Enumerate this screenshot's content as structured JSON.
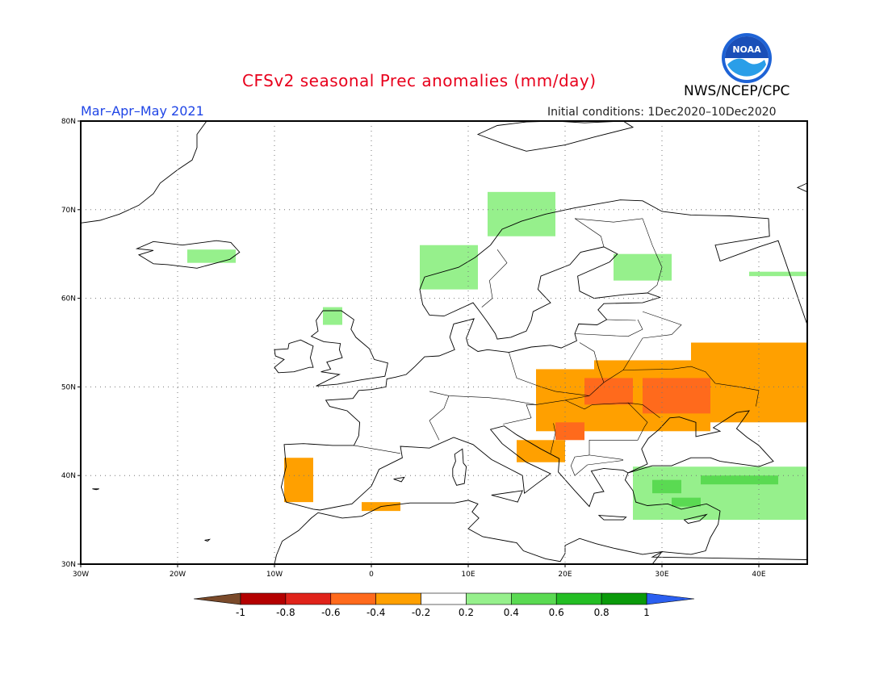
{
  "header": {
    "title": "CFSv2 seasonal Prec anomalies (mm/day)",
    "season": "Mar–Apr–May 2021",
    "initial_conditions": "Initial conditions: 1Dec2020–10Dec2020",
    "organization": "NWS/NCEP/CPC",
    "logo_text": "NOAA"
  },
  "map": {
    "lon_range": [
      -30,
      45
    ],
    "lat_range": [
      30,
      80
    ],
    "lon_ticks": [
      {
        "value": -30,
        "label": "30W"
      },
      {
        "value": -20,
        "label": "20W"
      },
      {
        "value": -10,
        "label": "10W"
      },
      {
        "value": 0,
        "label": "0"
      },
      {
        "value": 10,
        "label": "10E"
      },
      {
        "value": 20,
        "label": "20E"
      },
      {
        "value": 30,
        "label": "30E"
      },
      {
        "value": 40,
        "label": "40E"
      }
    ],
    "lat_ticks": [
      {
        "value": 30,
        "label": "30N"
      },
      {
        "value": 40,
        "label": "40N"
      },
      {
        "value": 50,
        "label": "50N"
      },
      {
        "value": 60,
        "label": "60N"
      },
      {
        "value": 70,
        "label": "70N"
      },
      {
        "value": 80,
        "label": "80N"
      }
    ],
    "grid": true,
    "anomaly_regions": [
      {
        "lon": [
          23,
          33
        ],
        "lat": [
          49.5,
          53
        ],
        "value": -0.3
      },
      {
        "lon": [
          17,
          35
        ],
        "lat": [
          45,
          52
        ],
        "value": -0.3
      },
      {
        "lon": [
          33,
          45
        ],
        "lat": [
          46,
          55
        ],
        "value": -0.3
      },
      {
        "lon": [
          22,
          27
        ],
        "lat": [
          48,
          51
        ],
        "value": -0.5
      },
      {
        "lon": [
          28,
          35
        ],
        "lat": [
          47,
          51
        ],
        "value": -0.5
      },
      {
        "lon": [
          19,
          22
        ],
        "lat": [
          44,
          46
        ],
        "value": -0.5
      },
      {
        "lon": [
          15,
          20
        ],
        "lat": [
          41.5,
          44
        ],
        "value": -0.3
      },
      {
        "lon": [
          -9,
          -6
        ],
        "lat": [
          37,
          42
        ],
        "value": -0.3
      },
      {
        "lon": [
          -1,
          3
        ],
        "lat": [
          36,
          37
        ],
        "value": -0.3
      },
      {
        "lon": [
          5,
          11
        ],
        "lat": [
          61,
          66
        ],
        "value": 0.3
      },
      {
        "lon": [
          12,
          19
        ],
        "lat": [
          67,
          72
        ],
        "value": 0.3
      },
      {
        "lon": [
          -19,
          -14
        ],
        "lat": [
          64,
          65.5
        ],
        "value": 0.3
      },
      {
        "lon": [
          -5,
          -3
        ],
        "lat": [
          57,
          59
        ],
        "value": 0.3
      },
      {
        "lon": [
          25,
          31
        ],
        "lat": [
          62,
          65
        ],
        "value": 0.3
      },
      {
        "lon": [
          39,
          45
        ],
        "lat": [
          62.5,
          63
        ],
        "value": 0.3
      },
      {
        "lon": [
          27,
          45
        ],
        "lat": [
          35,
          41
        ],
        "value": 0.3
      },
      {
        "lon": [
          34,
          42
        ],
        "lat": [
          39,
          40
        ],
        "value": 0.5
      },
      {
        "lon": [
          29,
          32
        ],
        "lat": [
          38,
          39.5
        ],
        "value": 0.5
      },
      {
        "lon": [
          31,
          34
        ],
        "lat": [
          36.5,
          37.5
        ],
        "value": 0.5
      }
    ]
  },
  "colorbar": {
    "levels": [
      "-1",
      "-0.8",
      "-0.6",
      "-0.4",
      "-0.2",
      "0.2",
      "0.4",
      "0.6",
      "0.8",
      "1"
    ],
    "colors": [
      "#b40000",
      "#e0231a",
      "#ff6a1c",
      "#ffa000",
      "#ffffff",
      "#96f08c",
      "#5ada52",
      "#24be24",
      "#0a9a0a"
    ],
    "low_extend_color": "#7a4a2a",
    "high_extend_color": "#2b5ff0"
  }
}
